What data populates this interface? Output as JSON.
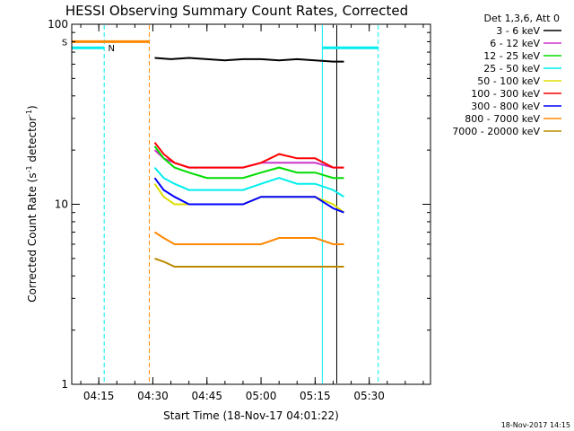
{
  "chart_data": {
    "type": "line",
    "title": "HESSI Observing Summary Count Rates, Corrected",
    "xlabel": "Start Time (18-Nov-17 04:01:22)",
    "ylabel": "Corrected Count Rate (s",
    "ylabel_sup1": "-1",
    "ylabel_mid": " detector",
    "ylabel_sup2": "-1",
    "ylabel_end": ")",
    "y_scale": "log",
    "ylim": [
      1,
      100
    ],
    "x_unit": "minutes since 04:00",
    "xlim": [
      7.5,
      107
    ],
    "x_ticks": [
      {
        "value": 15,
        "label": "04:15"
      },
      {
        "value": 30,
        "label": "04:30"
      },
      {
        "value": 45,
        "label": "04:45"
      },
      {
        "value": 60,
        "label": "05:00"
      },
      {
        "value": 75,
        "label": "05:15"
      },
      {
        "value": 90,
        "label": "05:30"
      }
    ],
    "y_ticks": [
      {
        "value": 1,
        "label": "1"
      },
      {
        "value": 10,
        "label": "10"
      },
      {
        "value": 100,
        "label": "100"
      }
    ],
    "legend": {
      "header": "Det 1,3,6, Att 0",
      "placement": "right"
    },
    "series": [
      {
        "name": "3 - 6 keV",
        "color": "#000000",
        "x": [
          30.5,
          35,
          40,
          45,
          50,
          55,
          60,
          65,
          70,
          75,
          80,
          83
        ],
        "y": [
          65,
          64,
          65,
          64,
          63,
          64,
          64,
          63,
          64,
          63,
          62,
          62
        ]
      },
      {
        "name": "6 - 12 keV",
        "color": "#cc33cc",
        "x": [
          30.5,
          33,
          36,
          40,
          45,
          50,
          55,
          60,
          65,
          70,
          75,
          80,
          83
        ],
        "y": [
          20,
          18,
          17,
          16,
          16,
          16,
          16,
          17,
          17,
          17,
          17,
          16,
          16
        ]
      },
      {
        "name": "12 - 25 keV",
        "color": "#00dd00",
        "x": [
          30.5,
          33,
          36,
          40,
          45,
          50,
          55,
          60,
          65,
          70,
          75,
          80,
          83
        ],
        "y": [
          21,
          18,
          16,
          15,
          14,
          14,
          14,
          15,
          16,
          15,
          15,
          14,
          14
        ]
      },
      {
        "name": "25 - 50 keV",
        "color": "#00eeee",
        "x": [
          30.5,
          33,
          36,
          40,
          45,
          50,
          55,
          60,
          65,
          70,
          75,
          80,
          83
        ],
        "y": [
          16,
          14,
          13,
          12,
          12,
          12,
          12,
          13,
          14,
          13,
          13,
          12,
          11
        ]
      },
      {
        "name": "50 - 100 keV",
        "color": "#dddd00",
        "x": [
          30.5,
          33,
          36,
          40,
          45,
          50,
          55,
          60,
          65,
          70,
          75,
          80,
          83
        ],
        "y": [
          13,
          11,
          10,
          10,
          10,
          10,
          10,
          11,
          11,
          11,
          11,
          10,
          9
        ]
      },
      {
        "name": "100 - 300 keV",
        "color": "#ff0000",
        "x": [
          30.5,
          33,
          36,
          40,
          45,
          50,
          55,
          60,
          65,
          70,
          75,
          80,
          83
        ],
        "y": [
          22,
          19,
          17,
          16,
          16,
          16,
          16,
          17,
          19,
          18,
          18,
          16,
          16
        ]
      },
      {
        "name": "300 - 800 keV",
        "color": "#0000ff",
        "x": [
          30.5,
          33,
          36,
          40,
          45,
          50,
          55,
          60,
          65,
          70,
          75,
          80,
          83
        ],
        "y": [
          14,
          12,
          11,
          10,
          10,
          10,
          10,
          11,
          11,
          11,
          11,
          9.5,
          9
        ]
      },
      {
        "name": "800 - 7000 keV",
        "color": "#ff8800",
        "x": [
          30.5,
          33,
          36,
          40,
          45,
          50,
          55,
          60,
          65,
          70,
          75,
          80,
          83
        ],
        "y": [
          7,
          6.5,
          6,
          6,
          6,
          6,
          6,
          6,
          6.5,
          6.5,
          6.5,
          6,
          6
        ]
      },
      {
        "name": "7000 - 20000 keV",
        "color": "#bb8800",
        "x": [
          30.5,
          33,
          36,
          40,
          45,
          50,
          55,
          60,
          65,
          70,
          75,
          80,
          83
        ],
        "y": [
          5,
          4.8,
          4.5,
          4.5,
          4.5,
          4.5,
          4.5,
          4.5,
          4.5,
          4.5,
          4.5,
          4.5,
          4.5
        ]
      }
    ],
    "vertical_lines": [
      {
        "x": 16.5,
        "color": "#00eeee",
        "style": "dashed"
      },
      {
        "x": 29,
        "color": "#ff8800",
        "style": "dashed"
      },
      {
        "x": 77,
        "color": "#00eeee",
        "style": "solid"
      },
      {
        "x": 81,
        "color": "#000000",
        "style": "solid"
      },
      {
        "x": 92.5,
        "color": "#00eeee",
        "style": "dashed"
      }
    ],
    "status_bars": [
      {
        "label": "S",
        "color": "#ff8800",
        "x_start": 7.5,
        "x_end": 29,
        "y": 80
      },
      {
        "label": "N",
        "color": "#00eeee",
        "x_start": 7.5,
        "x_end": 16.5,
        "y": 74
      },
      {
        "label": "",
        "color": "#00eeee",
        "x_start": 77,
        "x_end": 92.5,
        "y": 74
      }
    ],
    "timestamp": "18-Nov-2017 14:15"
  }
}
